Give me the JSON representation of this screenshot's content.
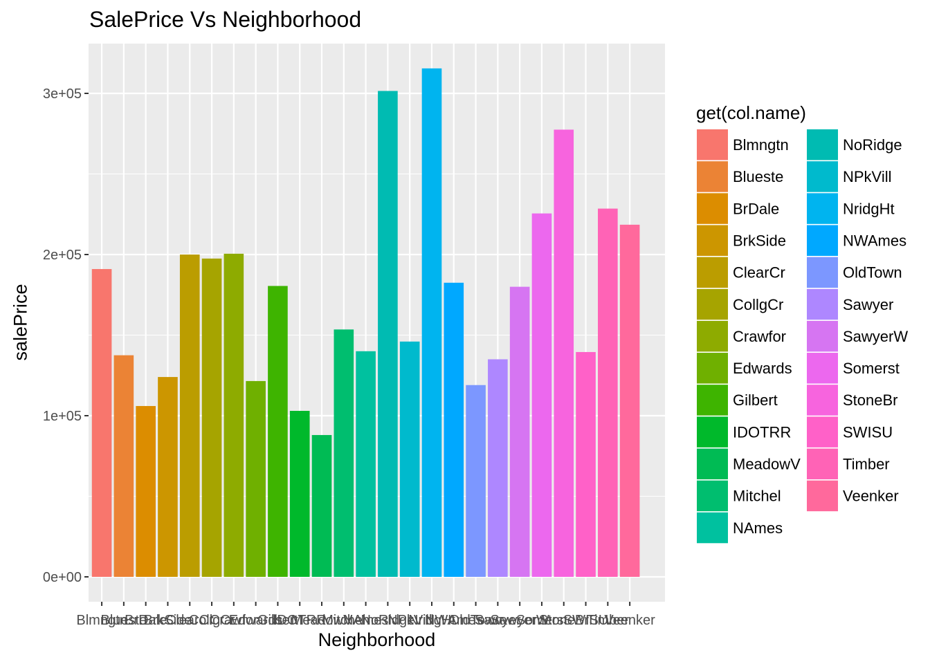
{
  "chart_data": {
    "type": "bar",
    "title": "SalePrice Vs Neighborhood",
    "xlabel": "Neighborhood",
    "ylabel": "salePrice",
    "legend_title": "get(col.name)",
    "legend_placement": "right",
    "grid": true,
    "ylim": [
      0,
      325000
    ],
    "yticks": [
      {
        "value": 0,
        "label": "0e+00"
      },
      {
        "value": 100000,
        "label": "1e+05"
      },
      {
        "value": 200000,
        "label": "2e+05"
      },
      {
        "value": 300000,
        "label": "3e+05"
      }
    ],
    "categories": [
      "Blmngtn",
      "Blueste",
      "BrDale",
      "BrkSide",
      "ClearCr",
      "CollgCr",
      "Crawfor",
      "Edwards",
      "Gilbert",
      "IDOTRR",
      "MeadowV",
      "Mitchel",
      "NAmes",
      "NoRidge",
      "NPkVill",
      "NridgHt",
      "NWAmes",
      "OldTown",
      "Sawyer",
      "SawyerW",
      "Somerst",
      "StoneBr",
      "SWISU",
      "Timber",
      "Veenker"
    ],
    "values": [
      191000,
      137500,
      106000,
      124000,
      200000,
      197500,
      200500,
      121500,
      180500,
      103000,
      88000,
      153500,
      140000,
      301500,
      146000,
      315500,
      182500,
      119000,
      135000,
      180000,
      225500,
      277500,
      139500,
      228500,
      218500
    ],
    "colors": [
      "#F8766D",
      "#EB8335",
      "#DC8D00",
      "#CC9600",
      "#BB9D00",
      "#A6A400",
      "#8EAB00",
      "#6FB000",
      "#3EB400",
      "#00B92B",
      "#00BB54",
      "#00BE6F",
      "#00C19F",
      "#00BBB2",
      "#00BACD",
      "#00B4EF",
      "#00A8FF",
      "#7C97FF",
      "#AE87FF",
      "#D675F2",
      "#EC68EE",
      "#F764DE",
      "#FF61C8",
      "#FF63B6",
      "#FF699C"
    ]
  }
}
